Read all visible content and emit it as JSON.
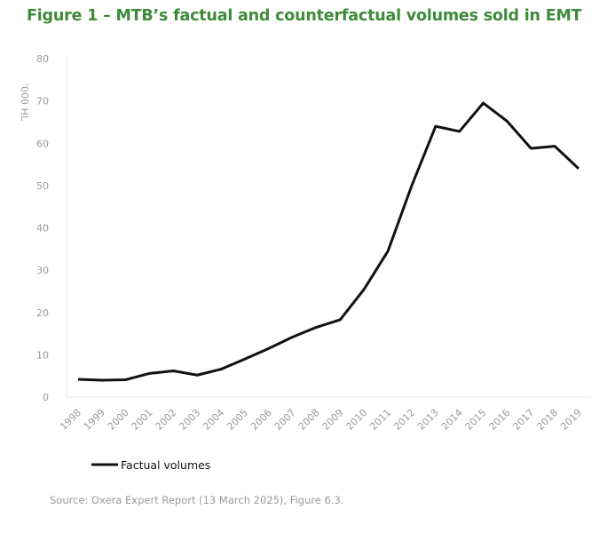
{
  "chart_data": {
    "type": "line",
    "title": "Figure 1 – MTB’s factual and counterfactual volumes sold in EMT",
    "xlabel": "",
    "ylabel": "'000 HL",
    "ylim": [
      0,
      80
    ],
    "yticks": [
      0,
      10,
      20,
      30,
      40,
      50,
      60,
      70,
      80
    ],
    "grid": false,
    "legend_position": "bottom-left",
    "x": [
      "1998",
      "1999",
      "2000",
      "2001",
      "2002",
      "2003",
      "2004",
      "2005",
      "2006",
      "2007",
      "2008",
      "2009",
      "2010",
      "2011",
      "2012",
      "2013",
      "2014",
      "2015",
      "2016",
      "2017",
      "2018",
      "2019"
    ],
    "series": [
      {
        "name": "Factual volumes",
        "color": "#111111",
        "values": [
          4.2,
          4.0,
          4.1,
          5.6,
          6.2,
          5.2,
          6.6,
          9.0,
          11.5,
          14.2,
          16.5,
          18.3,
          25.5,
          34.5,
          50.0,
          64.0,
          62.8,
          69.5,
          65.2,
          58.8,
          59.3,
          54.0
        ]
      }
    ],
    "source": "Source: Oxera Expert Report (13 March 2025), Figure 6.3."
  }
}
